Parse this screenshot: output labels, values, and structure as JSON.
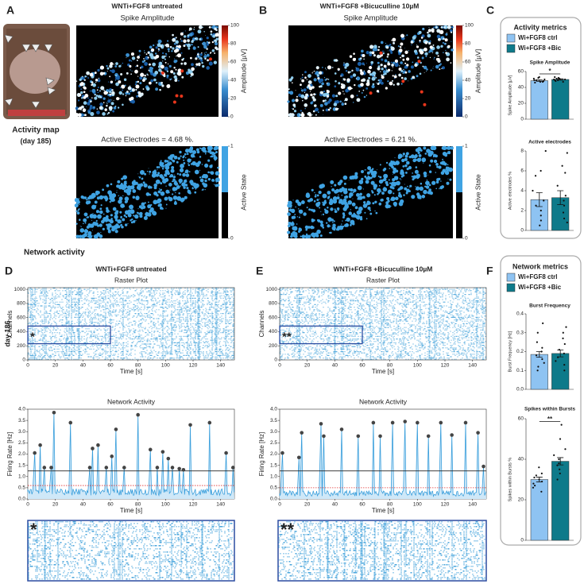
{
  "panel_letters": [
    "A",
    "B",
    "C",
    "D",
    "E",
    "F"
  ],
  "group_titles": [
    "WNTi+FGF8 untreated",
    "WNTi+FGF8 +Bicuculline 10µM"
  ],
  "activity_map": "Activity map",
  "day185": "(day 185)",
  "network_activity": "Network activity",
  "day186": "day 186",
  "metrics_titles": [
    "Activity metrics",
    "Network metrics"
  ],
  "legend": [
    {
      "name": "Wi+FGF8 ctrl",
      "color": "#8ec3f2"
    },
    {
      "name": "Wi+FGF8 +Bic",
      "color": "#0e7a8a"
    }
  ],
  "zoom_markers": [
    "*",
    "**"
  ],
  "chart_data": [
    {
      "type": "heatmap",
      "title": "Spike Amplitude",
      "colorbar_label": "Amplitude [µV]",
      "ylim": [
        0,
        100
      ],
      "yticks": [
        0,
        20,
        40,
        60,
        80,
        100
      ]
    },
    {
      "type": "heatmap",
      "title": "Spike Amplitude",
      "colorbar_label": "Amplitude [µV]",
      "ylim": [
        0,
        100
      ],
      "yticks": [
        0,
        20,
        40,
        60,
        80,
        100
      ]
    },
    {
      "type": "heatmap",
      "title": "Active Electrodes = 4.68 %.",
      "colorbar_label": "Active State",
      "ylim": [
        0,
        1
      ],
      "yticks": [
        0,
        1
      ]
    },
    {
      "type": "heatmap",
      "title": "Active Electrodes = 6.21 %.",
      "colorbar_label": "Active State",
      "ylim": [
        0,
        1
      ],
      "yticks": [
        0,
        1
      ]
    },
    {
      "type": "bar",
      "title": "Spike Amplitude",
      "ylabel": "Spike Amplitude [µV]",
      "ylim": [
        0,
        60
      ],
      "yticks": [
        0,
        20,
        40,
        60
      ],
      "values": [
        48.5,
        50
      ],
      "errors": [
        1,
        0.8
      ],
      "points": [
        [
          46,
          47,
          48,
          49,
          50,
          51,
          52,
          47,
          49,
          53
        ],
        [
          48,
          49,
          50,
          51,
          52,
          50,
          49,
          51,
          53,
          47
        ]
      ],
      "significance": "*"
    },
    {
      "type": "bar",
      "title": "Active electrodes",
      "ylabel": "Active electrodes %",
      "ylim": [
        0,
        8
      ],
      "yticks": [
        0,
        2,
        4,
        6,
        8
      ],
      "values": [
        3.1,
        3.3
      ],
      "errors": [
        0.7,
        0.7
      ],
      "points": [
        [
          0.5,
          1,
          1.5,
          2,
          2.5,
          3,
          4,
          5.5,
          6,
          8
        ],
        [
          0.8,
          1.2,
          1.8,
          2.5,
          3,
          3.5,
          4.5,
          5.8,
          6.5,
          7.8
        ]
      ]
    },
    {
      "type": "raster",
      "title": "Raster Plot",
      "xlabel": "Time [s]",
      "ylabel": "Channels",
      "xlim": [
        0,
        150
      ],
      "xticks": [
        0,
        20,
        40,
        60,
        80,
        100,
        120,
        140
      ],
      "ylim": [
        0,
        1024
      ],
      "yticks": [
        0,
        200,
        400,
        600,
        800,
        1000
      ],
      "box_x": [
        0,
        60
      ],
      "box_y": [
        230,
        480
      ],
      "annotation": "*"
    },
    {
      "type": "line",
      "title": "Network Activity",
      "xlabel": "Time [s]",
      "ylabel": "Firing Rate [Hz]",
      "xlim": [
        0,
        150
      ],
      "xticks": [
        0,
        20,
        40,
        60,
        80,
        100,
        120,
        140
      ],
      "ylim": [
        0,
        4
      ],
      "yticks": [
        {
          "value": 0,
          "label": "0.0"
        },
        {
          "value": 0.5,
          "label": "0.5"
        },
        {
          "value": 1,
          "label": "1.0"
        },
        {
          "value": 1.5,
          "label": "1.5"
        },
        {
          "value": 2,
          "label": "2.0"
        },
        {
          "value": 2.5,
          "label": "2.5"
        },
        {
          "value": 3,
          "label": "3.0"
        },
        {
          "value": 3.5,
          "label": "3.5"
        },
        {
          "value": 4,
          "label": "4.0"
        }
      ],
      "x": [
        5,
        9,
        12,
        17,
        19,
        31,
        45,
        47,
        51,
        57,
        61,
        64,
        70,
        80,
        89,
        94,
        98,
        102,
        105,
        110,
        113,
        118,
        132,
        144,
        149
      ],
      "values": [
        2.05,
        2.4,
        1.4,
        1.4,
        3.85,
        3.4,
        1.4,
        2.25,
        2.4,
        1.4,
        1.9,
        3.1,
        1.4,
        3.75,
        2.2,
        1.4,
        2.1,
        1.8,
        1.4,
        1.35,
        1.3,
        3.3,
        3.4,
        2.05,
        1.4
      ],
      "baseline": 0.3,
      "thresholds": [
        {
          "value": 1.25,
          "color": "#222"
        },
        {
          "value": 0.6,
          "color": "#e03030"
        }
      ]
    },
    {
      "type": "raster",
      "title": "Raster Plot",
      "xlabel": "Time [s]",
      "ylabel": "Channels",
      "xlim": [
        0,
        150
      ],
      "xticks": [
        0,
        20,
        40,
        60,
        80,
        100,
        120,
        140
      ],
      "ylim": [
        0,
        1024
      ],
      "yticks": [
        0,
        200,
        400,
        600,
        800,
        1000
      ],
      "box_x": [
        0,
        60
      ],
      "box_y": [
        230,
        480
      ],
      "annotation": "**"
    },
    {
      "type": "line",
      "title": "Network Activity",
      "xlabel": "Time [s]",
      "ylabel": "Firing Rate [Hz]",
      "xlim": [
        0,
        150
      ],
      "xticks": [
        0,
        20,
        40,
        60,
        80,
        100,
        120,
        140
      ],
      "ylim": [
        0,
        4
      ],
      "yticks": [
        {
          "value": 0,
          "label": "0.0"
        },
        {
          "value": 0.5,
          "label": "0.5"
        },
        {
          "value": 1,
          "label": "1.0"
        },
        {
          "value": 1.5,
          "label": "1.5"
        },
        {
          "value": 2,
          "label": "2.0"
        },
        {
          "value": 2.5,
          "label": "2.5"
        },
        {
          "value": 3,
          "label": "3.0"
        },
        {
          "value": 3.5,
          "label": "3.5"
        },
        {
          "value": 4,
          "label": "4.0"
        }
      ],
      "x": [
        2,
        14,
        16,
        30,
        32,
        45,
        57,
        68,
        73,
        82,
        91,
        100,
        108,
        117,
        125,
        135,
        144,
        148
      ],
      "values": [
        2.05,
        1.85,
        2.95,
        3.35,
        2.8,
        3.1,
        2.8,
        3.4,
        2.8,
        3.4,
        3.45,
        3.4,
        2.8,
        3.4,
        2.85,
        3.4,
        2.95,
        1.45
      ],
      "baseline": 0.25,
      "thresholds": [
        {
          "value": 1.25,
          "color": "#222"
        },
        {
          "value": 0.5,
          "color": "#e03030"
        }
      ]
    },
    {
      "type": "bar",
      "title": "Burst Frequency",
      "ylabel": "Burst Frequency [Hz]",
      "ylim": [
        0,
        0.4
      ],
      "yticks": [
        {
          "value": 0,
          "label": "0.0"
        },
        {
          "value": 0.1,
          "label": "0.1"
        },
        {
          "value": 0.2,
          "label": "0.2"
        },
        {
          "value": 0.3,
          "label": "0.3"
        },
        {
          "value": 0.4,
          "label": "0.4"
        }
      ],
      "values": [
        0.185,
        0.19
      ],
      "errors": [
        0.015,
        0.018
      ],
      "points": [
        [
          0.1,
          0.12,
          0.14,
          0.16,
          0.18,
          0.2,
          0.22,
          0.25,
          0.3,
          0.35
        ],
        [
          0.1,
          0.13,
          0.15,
          0.17,
          0.19,
          0.21,
          0.24,
          0.27,
          0.3,
          0.33
        ]
      ]
    },
    {
      "type": "bar",
      "title": "Spikes within Bursts",
      "ylabel": "Spikes within Bursts %",
      "ylim": [
        0,
        60
      ],
      "yticks": [
        0,
        20,
        40,
        60
      ],
      "values": [
        30,
        39
      ],
      "errors": [
        1.2,
        1.8
      ],
      "points": [
        [
          24,
          26,
          27,
          28,
          29,
          30,
          31,
          32,
          33,
          36
        ],
        [
          30,
          33,
          35,
          37,
          38,
          40,
          42,
          45,
          50,
          57
        ]
      ],
      "significance": "**"
    }
  ]
}
